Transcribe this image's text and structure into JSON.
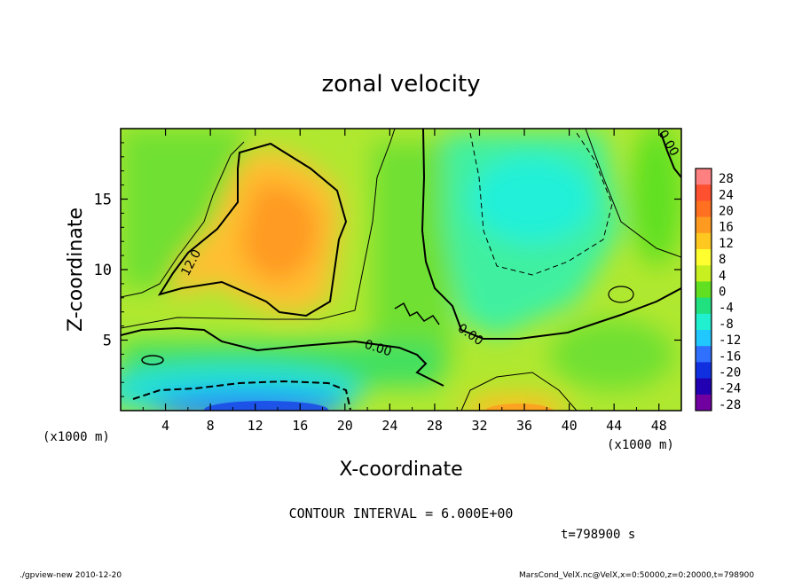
{
  "chart_data": {
    "type": "heatmap",
    "title": "zonal velocity",
    "xlabel": "X-coordinate",
    "ylabel": "Z-coordinate",
    "x_unit": "(x1000 m)",
    "z_unit": "(x1000 m)",
    "xlim": [
      0,
      50
    ],
    "ylim": [
      0,
      20
    ],
    "x_ticks": [
      "4",
      "8",
      "12",
      "16",
      "20",
      "24",
      "28",
      "32",
      "36",
      "40",
      "44",
      "48"
    ],
    "y_ticks": [
      "5",
      "10",
      "15"
    ],
    "colorbar_labels": [
      "28",
      "24",
      "20",
      "16",
      "12",
      "8",
      "4",
      "0",
      "-4",
      "-8",
      "-12",
      "-16",
      "-20",
      "-24",
      "-28"
    ],
    "colorbar_colors": [
      "#ff8080",
      "#ff5030",
      "#ff7020",
      "#ff9a20",
      "#ffc820",
      "#ffff30",
      "#c8f020",
      "#60e020",
      "#20e080",
      "#20f0d0",
      "#20c8ff",
      "#3070ff",
      "#1030e0",
      "#2000b0",
      "#7000a0"
    ],
    "contour_labels": [
      "12.0",
      "0.00",
      "0.00",
      "0.00"
    ],
    "contour_interval": "CONTOUR INTERVAL = 6.000E+00",
    "time_label": "t=798900 s",
    "program_label": "./gpview-new  2010-12-20",
    "source_label": "MarsCond_VelX.nc@VelX,x=0:50000,z=0:20000,t=798900",
    "legend_placement": "right",
    "grid": false
  }
}
